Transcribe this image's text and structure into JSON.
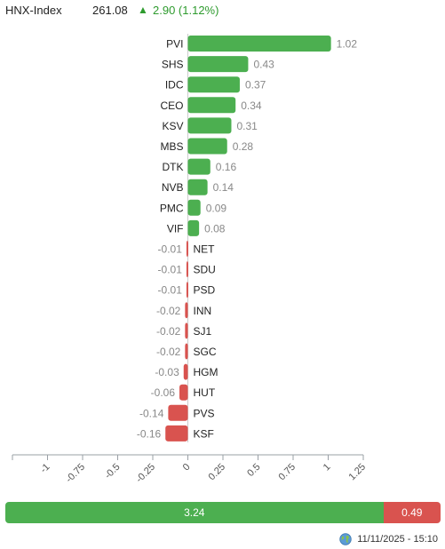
{
  "index": {
    "name": "HNX-Index",
    "value": "261.08",
    "change": "2.90 (1.12%)",
    "direction": "up"
  },
  "colors": {
    "up": "#4caf50",
    "down": "#d9534f",
    "axis": "#9aa0a6",
    "label": "#888888",
    "text": "#222222"
  },
  "chart_data": {
    "type": "bar",
    "orientation": "horizontal",
    "categories": [
      "PVI",
      "SHS",
      "IDC",
      "CEO",
      "KSV",
      "MBS",
      "DTK",
      "NVB",
      "PMC",
      "VIF",
      "NET",
      "SDU",
      "PSD",
      "INN",
      "SJ1",
      "SGC",
      "HGM",
      "HUT",
      "PVS",
      "KSF"
    ],
    "values": [
      1.02,
      0.43,
      0.37,
      0.34,
      0.31,
      0.28,
      0.16,
      0.14,
      0.09,
      0.08,
      -0.01,
      -0.01,
      -0.01,
      -0.02,
      -0.02,
      -0.02,
      -0.03,
      -0.06,
      -0.14,
      -0.16
    ],
    "value_labels": [
      "1.02",
      "0.43",
      "0.37",
      "0.34",
      "0.31",
      "0.28",
      "0.16",
      "0.14",
      "0.09",
      "0.08",
      "-0.01",
      "-0.01",
      "-0.01",
      "-0.02",
      "-0.02",
      "-0.02",
      "-0.03",
      "-0.06",
      "-0.14",
      "-0.16"
    ],
    "xlim": [
      -1.25,
      1.25
    ],
    "xticks": [
      "-1.25",
      "-1",
      "-0.75",
      "-0.5",
      "-0.25",
      "0",
      "0.25",
      "0.5",
      "0.75",
      "1",
      "1.25"
    ],
    "grid": false,
    "legend": "none"
  },
  "summary": {
    "positive": "3.24",
    "negative": "0.49"
  },
  "footer": {
    "icon": "globe-icon",
    "timestamp": "11/11/2025 - 15:10"
  }
}
